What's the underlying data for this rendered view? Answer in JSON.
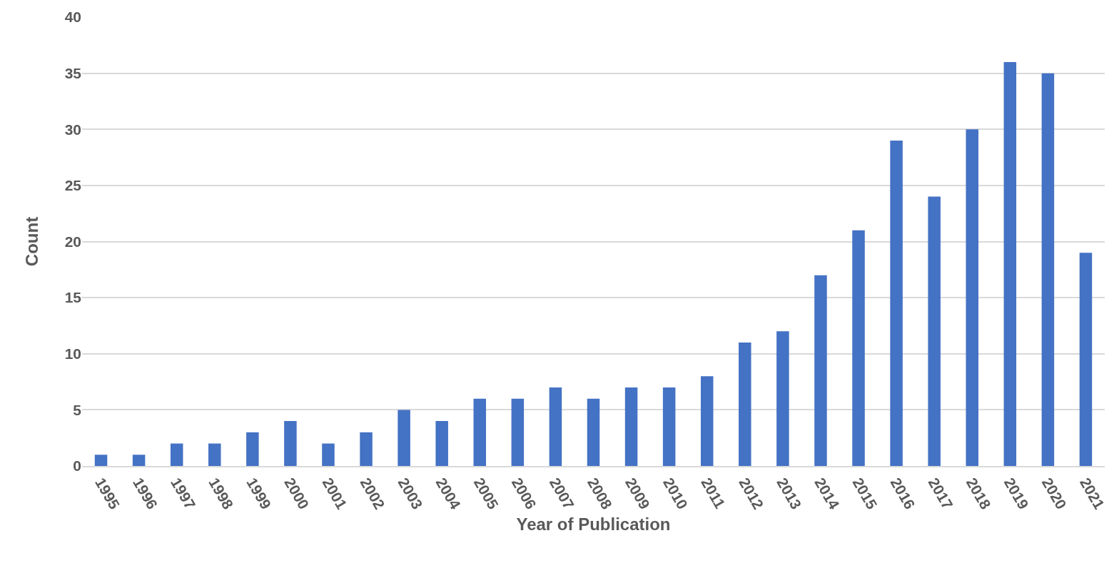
{
  "chart_data": {
    "type": "bar",
    "xlabel": "Year of Publication",
    "ylabel": "Count",
    "categories": [
      "1995",
      "1996",
      "1997",
      "1998",
      "1999",
      "2000",
      "2001",
      "2002",
      "2003",
      "2004",
      "2005",
      "2006",
      "2007",
      "2008",
      "2009",
      "2010",
      "2011",
      "2012",
      "2013",
      "2014",
      "2015",
      "2016",
      "2017",
      "2018",
      "2019",
      "2020",
      "2021"
    ],
    "values": [
      1,
      1,
      2,
      2,
      3,
      4,
      2,
      3,
      5,
      4,
      6,
      6,
      7,
      6,
      7,
      7,
      8,
      11,
      12,
      17,
      21,
      29,
      24,
      30,
      36,
      35,
      19
    ],
    "color": "#4472c4",
    "ylim": [
      0,
      40
    ],
    "yticks": [
      0,
      5,
      10,
      15,
      20,
      25,
      30,
      35,
      40
    ],
    "grid": "y"
  }
}
